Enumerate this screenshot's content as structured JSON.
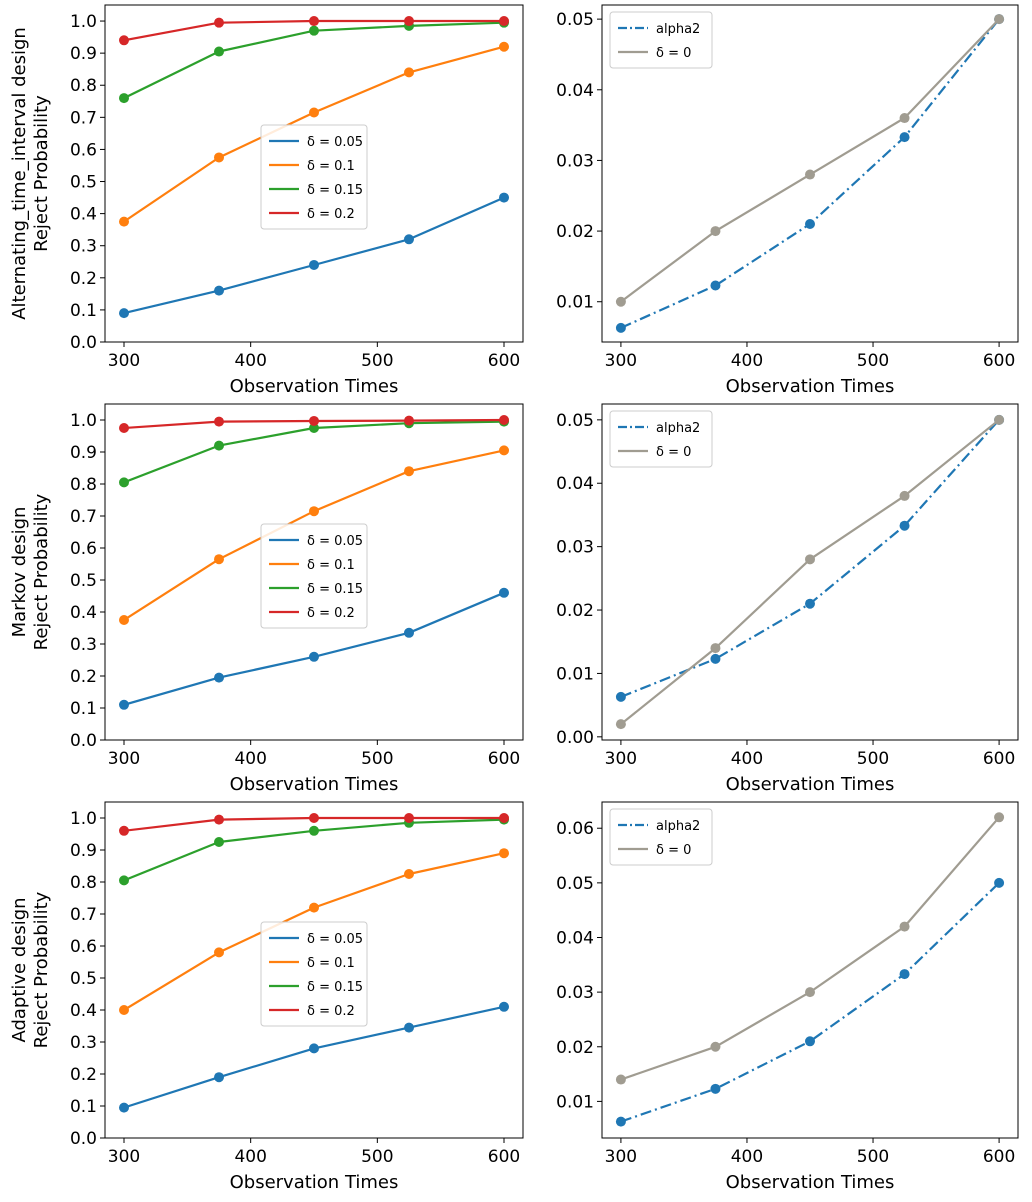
{
  "colors": {
    "blue": "#1f77b4",
    "orange": "#ff7f0e",
    "green": "#2ca02c",
    "red": "#d62728",
    "gray": "#a09c91"
  },
  "chart_data": [
    {
      "id": "alt-left",
      "type": "line",
      "ylabel_lines": [
        "Alternating_time_interval design",
        "Reject Probability"
      ],
      "xlabel": "Observation Times",
      "x": [
        300,
        375,
        450,
        525,
        600
      ],
      "xlim": [
        285,
        615
      ],
      "ylim": [
        0,
        1.05
      ],
      "xticks": [
        300,
        400,
        500,
        600
      ],
      "xtick_labels": [
        "300",
        "400",
        "500",
        "600"
      ],
      "yticks": [
        0,
        0.1,
        0.2,
        0.3,
        0.4,
        0.5,
        0.6,
        0.7,
        0.8,
        0.9,
        1.0
      ],
      "ytick_labels": [
        "0.0",
        "0.1",
        "0.2",
        "0.3",
        "0.4",
        "0.5",
        "0.6",
        "0.7",
        "0.8",
        "0.9",
        "1.0"
      ],
      "legend": {
        "position": "center"
      },
      "series": [
        {
          "name": "δ = 0.05",
          "color_key": "blue",
          "style": "solid",
          "values": [
            0.09,
            0.16,
            0.24,
            0.32,
            0.45
          ]
        },
        {
          "name": "δ = 0.1",
          "color_key": "orange",
          "style": "solid",
          "values": [
            0.375,
            0.575,
            0.715,
            0.84,
            0.92
          ]
        },
        {
          "name": "δ = 0.15",
          "color_key": "green",
          "style": "solid",
          "values": [
            0.76,
            0.905,
            0.97,
            0.985,
            0.995
          ]
        },
        {
          "name": "δ = 0.2",
          "color_key": "red",
          "style": "solid",
          "values": [
            0.94,
            0.995,
            1.0,
            1.0,
            1.0
          ]
        }
      ]
    },
    {
      "id": "alt-right",
      "type": "line",
      "ylabel_lines": [],
      "xlabel": "Observation Times",
      "x": [
        300,
        375,
        450,
        525,
        600
      ],
      "xlim": [
        285,
        615
      ],
      "ylim": [
        0.0043,
        0.052
      ],
      "xticks": [
        300,
        400,
        500,
        600
      ],
      "xtick_labels": [
        "300",
        "400",
        "500",
        "600"
      ],
      "yticks": [
        0.01,
        0.02,
        0.03,
        0.04,
        0.05
      ],
      "ytick_labels": [
        "0.01",
        "0.02",
        "0.03",
        "0.04",
        "0.05"
      ],
      "legend": {
        "position": "top-left"
      },
      "series": [
        {
          "name": "alpha2",
          "color_key": "blue",
          "style": "dashdot",
          "values": [
            0.0063,
            0.0123,
            0.021,
            0.0333,
            0.05
          ]
        },
        {
          "name": "δ = 0",
          "color_key": "gray",
          "style": "solid",
          "values": [
            0.01,
            0.02,
            0.028,
            0.036,
            0.05
          ]
        }
      ]
    },
    {
      "id": "markov-left",
      "type": "line",
      "ylabel_lines": [
        "Markov design",
        "Reject Probability"
      ],
      "xlabel": "Observation Times",
      "x": [
        300,
        375,
        450,
        525,
        600
      ],
      "xlim": [
        285,
        615
      ],
      "ylim": [
        0,
        1.05
      ],
      "xticks": [
        300,
        400,
        500,
        600
      ],
      "xtick_labels": [
        "300",
        "400",
        "500",
        "600"
      ],
      "yticks": [
        0,
        0.1,
        0.2,
        0.3,
        0.4,
        0.5,
        0.6,
        0.7,
        0.8,
        0.9,
        1.0
      ],
      "ytick_labels": [
        "0.0",
        "0.1",
        "0.2",
        "0.3",
        "0.4",
        "0.5",
        "0.6",
        "0.7",
        "0.8",
        "0.9",
        "1.0"
      ],
      "legend": {
        "position": "center"
      },
      "series": [
        {
          "name": "δ = 0.05",
          "color_key": "blue",
          "style": "solid",
          "values": [
            0.11,
            0.195,
            0.26,
            0.335,
            0.46
          ]
        },
        {
          "name": "δ = 0.1",
          "color_key": "orange",
          "style": "solid",
          "values": [
            0.375,
            0.565,
            0.715,
            0.84,
            0.905
          ]
        },
        {
          "name": "δ = 0.15",
          "color_key": "green",
          "style": "solid",
          "values": [
            0.805,
            0.92,
            0.975,
            0.99,
            0.995
          ]
        },
        {
          "name": "δ = 0.2",
          "color_key": "red",
          "style": "solid",
          "values": [
            0.975,
            0.995,
            0.997,
            0.998,
            1.0
          ]
        }
      ]
    },
    {
      "id": "markov-right",
      "type": "line",
      "ylabel_lines": [],
      "xlabel": "Observation Times",
      "x": [
        300,
        375,
        450,
        525,
        600
      ],
      "xlim": [
        285,
        615
      ],
      "ylim": [
        -0.0005,
        0.0525
      ],
      "xticks": [
        300,
        400,
        500,
        600
      ],
      "xtick_labels": [
        "300",
        "400",
        "500",
        "600"
      ],
      "yticks": [
        0,
        0.01,
        0.02,
        0.03,
        0.04,
        0.05
      ],
      "ytick_labels": [
        "0.00",
        "0.01",
        "0.02",
        "0.03",
        "0.04",
        "0.05"
      ],
      "legend": {
        "position": "top-left"
      },
      "series": [
        {
          "name": "alpha2",
          "color_key": "blue",
          "style": "dashdot",
          "values": [
            0.0063,
            0.0123,
            0.021,
            0.0333,
            0.05
          ]
        },
        {
          "name": "δ = 0",
          "color_key": "gray",
          "style": "solid",
          "values": [
            0.002,
            0.014,
            0.028,
            0.038,
            0.05
          ]
        }
      ]
    },
    {
      "id": "adaptive-left",
      "type": "line",
      "ylabel_lines": [
        "Adaptive design",
        "Reject Probability"
      ],
      "xlabel": "Observation Times",
      "x": [
        300,
        375,
        450,
        525,
        600
      ],
      "xlim": [
        285,
        615
      ],
      "ylim": [
        0,
        1.05
      ],
      "xticks": [
        300,
        400,
        500,
        600
      ],
      "xtick_labels": [
        "300",
        "400",
        "500",
        "600"
      ],
      "yticks": [
        0,
        0.1,
        0.2,
        0.3,
        0.4,
        0.5,
        0.6,
        0.7,
        0.8,
        0.9,
        1.0
      ],
      "ytick_labels": [
        "0.0",
        "0.1",
        "0.2",
        "0.3",
        "0.4",
        "0.5",
        "0.6",
        "0.7",
        "0.8",
        "0.9",
        "1.0"
      ],
      "legend": {
        "position": "center"
      },
      "series": [
        {
          "name": "δ = 0.05",
          "color_key": "blue",
          "style": "solid",
          "values": [
            0.095,
            0.19,
            0.28,
            0.345,
            0.41
          ]
        },
        {
          "name": "δ = 0.1",
          "color_key": "orange",
          "style": "solid",
          "values": [
            0.4,
            0.58,
            0.72,
            0.825,
            0.89
          ]
        },
        {
          "name": "δ = 0.15",
          "color_key": "green",
          "style": "solid",
          "values": [
            0.805,
            0.925,
            0.96,
            0.985,
            0.995
          ]
        },
        {
          "name": "δ = 0.2",
          "color_key": "red",
          "style": "solid",
          "values": [
            0.96,
            0.995,
            1.0,
            1.0,
            1.0
          ]
        }
      ]
    },
    {
      "id": "adaptive-right",
      "type": "line",
      "ylabel_lines": [],
      "xlabel": "Observation Times",
      "x": [
        300,
        375,
        450,
        525,
        600
      ],
      "xlim": [
        285,
        615
      ],
      "ylim": [
        0.0033,
        0.0648
      ],
      "xticks": [
        300,
        400,
        500,
        600
      ],
      "xtick_labels": [
        "300",
        "400",
        "500",
        "600"
      ],
      "yticks": [
        0.01,
        0.02,
        0.03,
        0.04,
        0.05,
        0.06
      ],
      "ytick_labels": [
        "0.01",
        "0.02",
        "0.03",
        "0.04",
        "0.05",
        "0.06"
      ],
      "legend": {
        "position": "top-left"
      },
      "series": [
        {
          "name": "alpha2",
          "color_key": "blue",
          "style": "dashdot",
          "values": [
            0.0063,
            0.0123,
            0.021,
            0.0333,
            0.05
          ]
        },
        {
          "name": "δ = 0",
          "color_key": "gray",
          "style": "solid",
          "values": [
            0.014,
            0.02,
            0.03,
            0.042,
            0.062
          ]
        }
      ]
    }
  ]
}
